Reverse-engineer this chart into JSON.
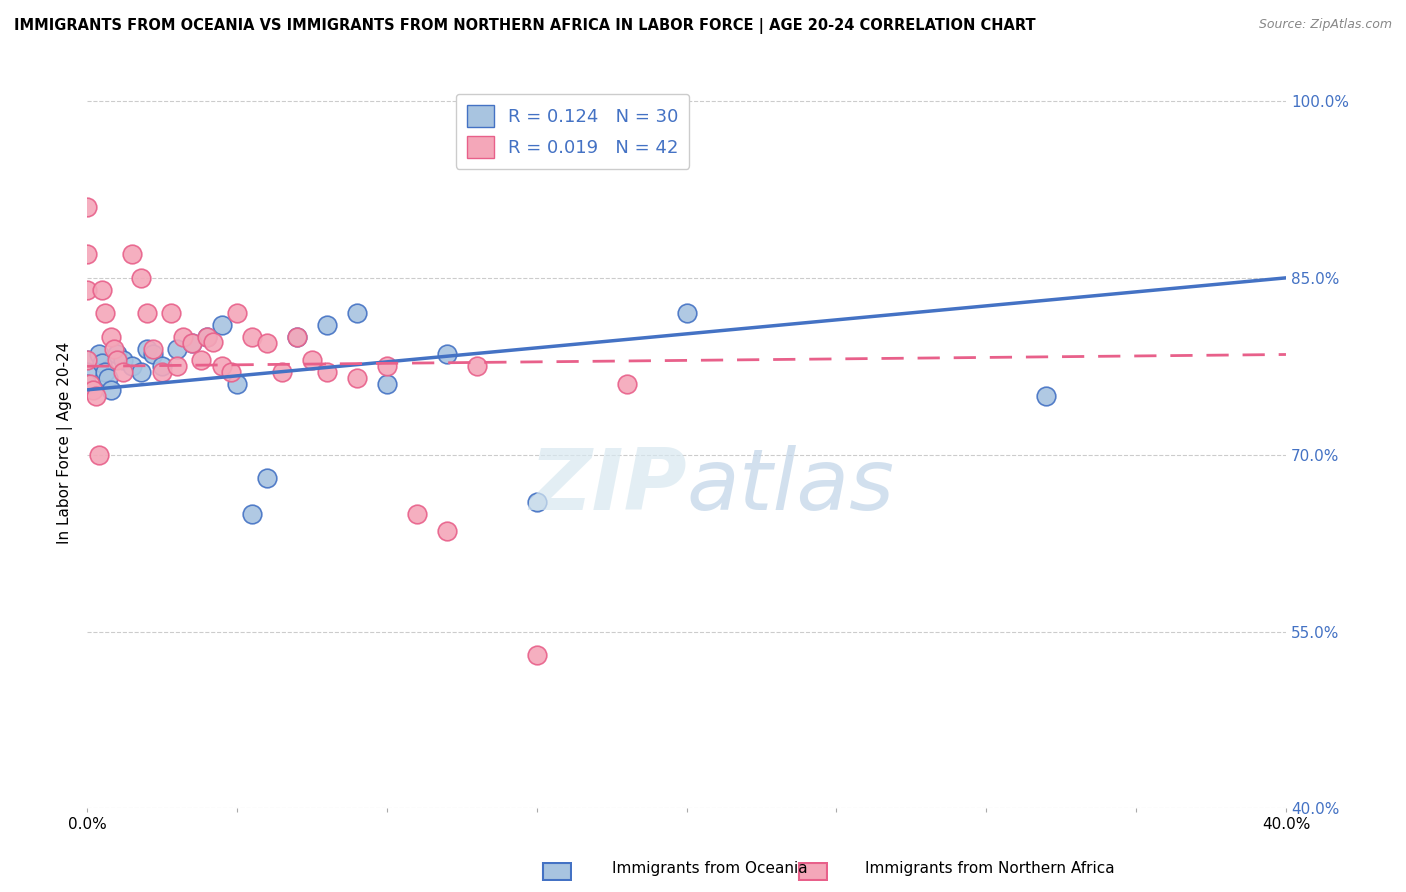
{
  "title": "IMMIGRANTS FROM OCEANIA VS IMMIGRANTS FROM NORTHERN AFRICA IN LABOR FORCE | AGE 20-24 CORRELATION CHART",
  "source": "Source: ZipAtlas.com",
  "ylabel": "In Labor Force | Age 20-24",
  "x_min": 0.0,
  "x_max": 0.4,
  "y_min": 0.4,
  "y_max": 1.02,
  "x_ticks": [
    0.0,
    0.05,
    0.1,
    0.15,
    0.2,
    0.25,
    0.3,
    0.35,
    0.4
  ],
  "x_tick_labels_show": [
    "0.0%",
    "",
    "",
    "",
    "",
    "",
    "",
    "",
    "40.0%"
  ],
  "y_ticks": [
    0.4,
    0.55,
    0.7,
    0.85,
    1.0
  ],
  "y_tick_labels": [
    "40.0%",
    "55.0%",
    "70.0%",
    "85.0%",
    "100.0%"
  ],
  "color_oceania": "#a8c4e0",
  "color_n_africa": "#f4a7b9",
  "line_color_oceania": "#4472c4",
  "line_color_n_africa": "#e8608a",
  "R_oceania": 0.124,
  "N_oceania": 30,
  "R_n_africa": 0.019,
  "N_n_africa": 42,
  "legend_label_oceania": "Immigrants from Oceania",
  "legend_label_n_africa": "Immigrants from Northern Africa",
  "oceania_x": [
    0.0,
    0.0,
    0.0,
    0.004,
    0.005,
    0.006,
    0.007,
    0.008,
    0.01,
    0.012,
    0.015,
    0.018,
    0.02,
    0.022,
    0.025,
    0.03,
    0.035,
    0.04,
    0.045,
    0.05,
    0.055,
    0.06,
    0.07,
    0.08,
    0.09,
    0.1,
    0.12,
    0.15,
    0.2,
    0.32
  ],
  "oceania_y": [
    0.78,
    0.77,
    0.76,
    0.785,
    0.778,
    0.77,
    0.765,
    0.755,
    0.785,
    0.78,
    0.775,
    0.77,
    0.79,
    0.785,
    0.775,
    0.79,
    0.795,
    0.8,
    0.81,
    0.76,
    0.65,
    0.68,
    0.8,
    0.81,
    0.82,
    0.76,
    0.785,
    0.66,
    0.82,
    0.75
  ],
  "n_africa_x": [
    0.0,
    0.0,
    0.0,
    0.0,
    0.001,
    0.002,
    0.003,
    0.004,
    0.005,
    0.006,
    0.008,
    0.009,
    0.01,
    0.012,
    0.015,
    0.018,
    0.02,
    0.022,
    0.025,
    0.028,
    0.03,
    0.032,
    0.035,
    0.038,
    0.04,
    0.042,
    0.045,
    0.048,
    0.05,
    0.055,
    0.06,
    0.065,
    0.07,
    0.075,
    0.08,
    0.09,
    0.1,
    0.11,
    0.12,
    0.13,
    0.15,
    0.18
  ],
  "n_africa_y": [
    0.91,
    0.87,
    0.84,
    0.78,
    0.76,
    0.755,
    0.75,
    0.7,
    0.84,
    0.82,
    0.8,
    0.79,
    0.78,
    0.77,
    0.87,
    0.85,
    0.82,
    0.79,
    0.77,
    0.82,
    0.775,
    0.8,
    0.795,
    0.78,
    0.8,
    0.796,
    0.775,
    0.77,
    0.82,
    0.8,
    0.795,
    0.77,
    0.8,
    0.78,
    0.77,
    0.765,
    0.775,
    0.65,
    0.635,
    0.775,
    0.53,
    0.76
  ]
}
